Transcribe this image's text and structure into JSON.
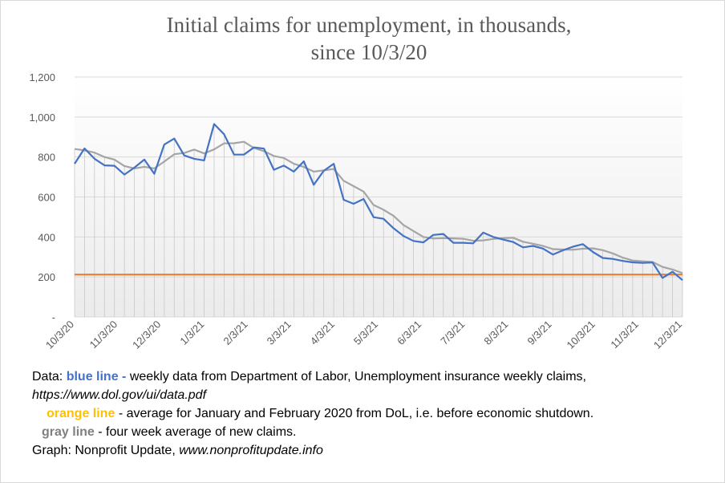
{
  "title_line1": "Initial claims for unemployment, in thousands,",
  "title_line2": "since 10/3/20",
  "colors": {
    "blue": "#4472c4",
    "orange": "#ed7d31",
    "gray": "#a5a5a5"
  },
  "notes": {
    "data_prefix": "Data:",
    "blue_label": "blue line -",
    "blue_text": "weekly data from Department of Labor, Unemployment insurance weekly claims,",
    "url": "https://www.dol.gov/ui/data.pdf",
    "orange_label": "orange line",
    "orange_text": "- average for January and February 2020 from DoL, i.e. before economic shutdown.",
    "gray_label": "gray line",
    "gray_text": "- four week average of new claims.",
    "graph_prefix": "Graph:  Nonprofit Update,",
    "graph_url": "www.nonprofitupdate.info"
  },
  "chart_data": {
    "type": "line",
    "title": "Initial claims for unemployment, in thousands, since 10/3/20",
    "ylim": [
      0,
      1200
    ],
    "y_ticks": [
      "-",
      "200",
      "400",
      "600",
      "800",
      "1,000",
      "1,200"
    ],
    "x_tick_labels": [
      "10/3/20",
      "11/3/20",
      "12/3/20",
      "1/3/21",
      "2/3/21",
      "3/3/21",
      "4/3/21",
      "5/3/21",
      "6/3/21",
      "7/3/21",
      "8/3/21",
      "9/3/21",
      "10/3/21",
      "11/3/21",
      "12/3/21"
    ],
    "grid": "horizontal gridlines; vertical drop lines at each week",
    "series": [
      {
        "values": [
          766,
          843,
          791,
          758,
          756,
          712,
          747,
          787,
          716,
          862,
          892,
          808,
          791,
          783,
          965,
          914,
          812,
          812,
          848,
          842,
          736,
          757,
          727,
          778,
          661,
          731,
          766,
          586,
          566,
          590,
          499,
          491,
          444,
          405,
          380,
          373,
          410,
          415,
          371,
          371,
          368,
          422,
          400,
          387,
          375,
          348,
          355,
          342,
          312,
          333,
          351,
          364,
          325,
          295,
          290,
          280,
          273,
          270,
          272,
          195,
          226,
          184
        ]
      },
      {
        "values": [
          840,
          833,
          822,
          800,
          787,
          755,
          743,
          751,
          743,
          777,
          814,
          820,
          837,
          818,
          838,
          868,
          869,
          876,
          845,
          829,
          805,
          795,
          766,
          750,
          727,
          733,
          740,
          681,
          654,
          627,
          560,
          536,
          506,
          460,
          430,
          400,
          392,
          394,
          393,
          391,
          381,
          383,
          390,
          394,
          396,
          376,
          366,
          355,
          339,
          337,
          336,
          341,
          343,
          334,
          318,
          297,
          282,
          278,
          275,
          250,
          237,
          219
        ]
      },
      {
        "values": [
          212,
          212
        ]
      }
    ]
  }
}
